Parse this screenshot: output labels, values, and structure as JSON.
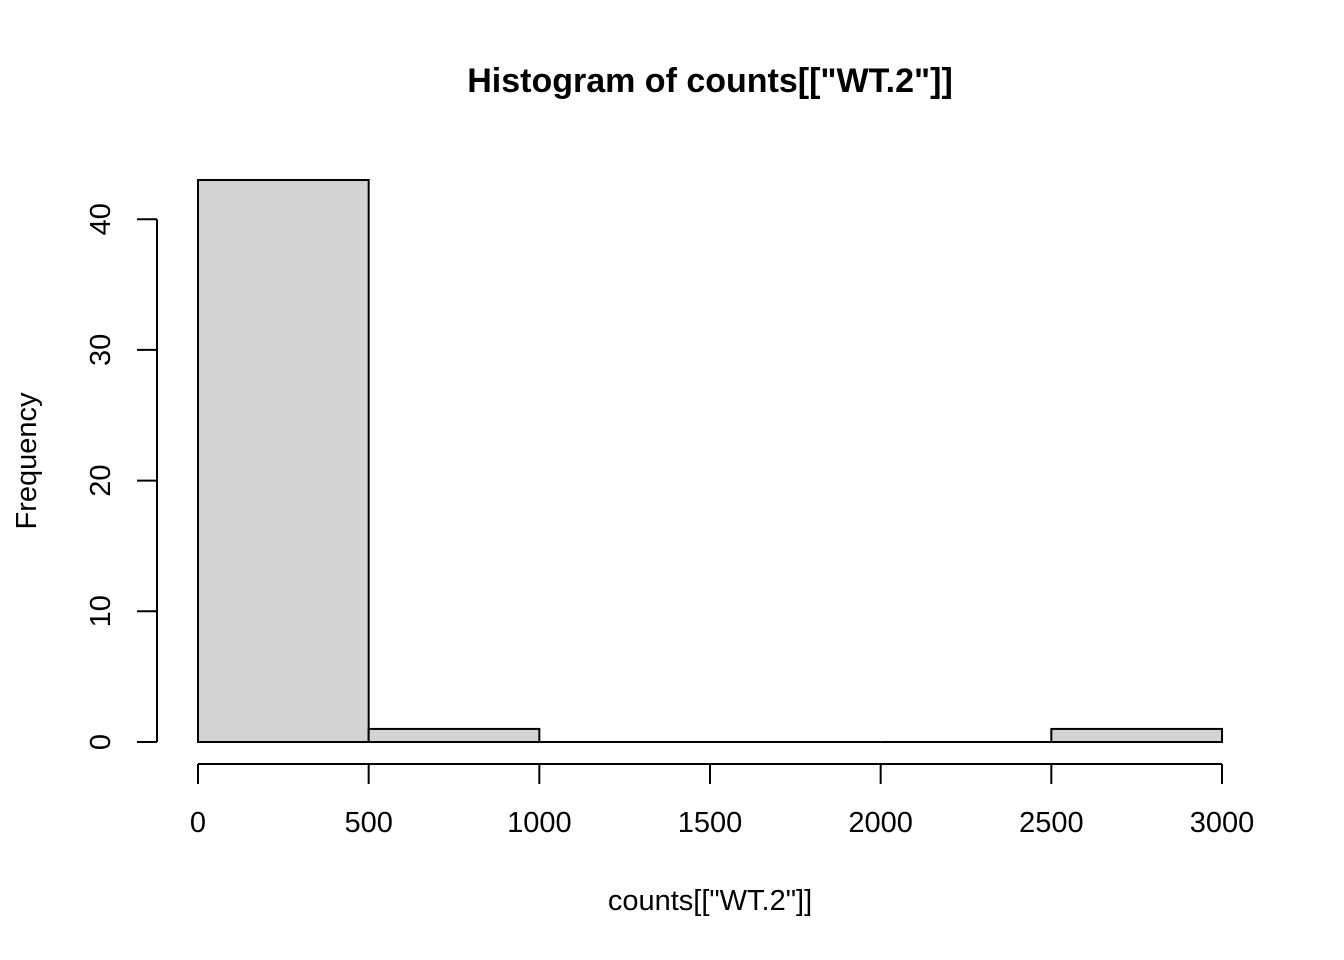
{
  "chart_data": {
    "type": "bar",
    "title": "Histogram of counts[[\"WT.2\"]]",
    "xlabel": "counts[[\"WT.2\"]]",
    "ylabel": "Frequency",
    "bins": [
      {
        "x0": 0,
        "x1": 500,
        "count": 43
      },
      {
        "x0": 500,
        "x1": 1000,
        "count": 1
      },
      {
        "x0": 1000,
        "x1": 1500,
        "count": 0
      },
      {
        "x0": 1500,
        "x1": 2000,
        "count": 0
      },
      {
        "x0": 2000,
        "x1": 2500,
        "count": 0
      },
      {
        "x0": 2500,
        "x1": 3000,
        "count": 1
      }
    ],
    "xlim": [
      0,
      3000
    ],
    "ylim": [
      0,
      43
    ],
    "x_ticks": [
      0,
      500,
      1000,
      1500,
      2000,
      2500,
      3000
    ],
    "y_ticks": [
      0,
      10,
      20,
      30,
      40
    ],
    "bar_fill": "#d3d3d3",
    "bar_stroke": "#000000",
    "grid": false,
    "legend": "none"
  }
}
